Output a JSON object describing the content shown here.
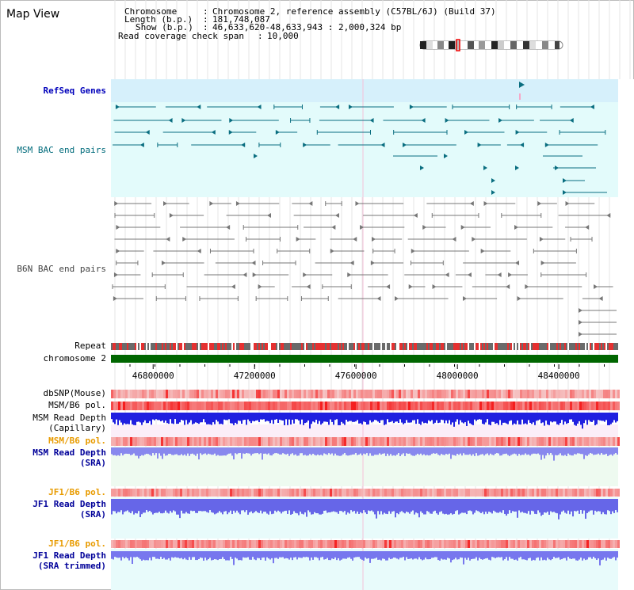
{
  "title": "Map View",
  "info": {
    "chromosome_key": "Chromosome",
    "chromosome_value": "Chromosome 2, reference assembly (C57BL/6J) (Build 37)",
    "length_key": "Length (b.p.)",
    "length_value": "181,748,087",
    "show_key": "Show (b.p.)",
    "show_value": "46,633,620-48,633,943 : 2,000,324 bp",
    "span_key": "Read coverage check span",
    "span_value": "10,000"
  },
  "tracks": {
    "refseq": "RefSeq Genes",
    "msm_bac": "MSM BAC end pairs",
    "b6n_bac": "B6N BAC end pairs",
    "repeat": "Repeat",
    "chromosome": "chromosome 2",
    "dbsnp": "dbSNP(Mouse)",
    "msm_pol": "MSM/B6 pol.",
    "msm_depth_cap_1": "MSM Read Depth",
    "msm_depth_cap_2": "(Capillary)",
    "msm_pol_sra": "MSM/B6 pol.",
    "msm_depth_sra_1": "MSM Read Depth",
    "msm_depth_sra_2": "(SRA)",
    "jf1_pol": "JF1/B6 pol.",
    "jf1_depth_1": "JF1 Read Depth",
    "jf1_depth_2": "(SRA)",
    "jf1_pol_trim": "JF1/B6 pol.",
    "jf1_trim_1": "JF1 Read Depth",
    "jf1_trim_2": "(SRA trimmed)"
  },
  "axis": {
    "ticks": [
      "46800000",
      "47200000",
      "47600000",
      "48000000",
      "48400000"
    ],
    "tick_values": [
      46800000,
      47200000,
      47600000,
      48000000,
      48400000
    ],
    "start": 46633620,
    "end": 48633943
  },
  "colors": {
    "refseq_bg": "#d6f0fb",
    "bac_bg": "#e3fbfb",
    "teal": "#0a6e80",
    "grey_feature": "#666666",
    "chromosome_bar": "#006600",
    "snp_red": "#ee3333",
    "depth_blue": "#2020e0",
    "depth_light": "#8888ee",
    "depth_jf1": "#6666e8"
  }
}
